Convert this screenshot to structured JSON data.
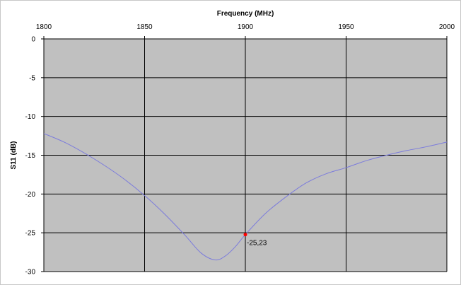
{
  "chart_data": {
    "type": "line",
    "title": "",
    "xlabel": "Frequency (MHz)",
    "ylabel": "S11 (dB)",
    "xlim": [
      1800,
      2000
    ],
    "ylim": [
      -30,
      0
    ],
    "x_ticks": [
      "1800",
      "1850",
      "1900",
      "1950",
      "2000"
    ],
    "y_ticks": [
      "0",
      "-5",
      "-10",
      "-15",
      "-20",
      "-25",
      "-30"
    ],
    "x_axis_position": "top",
    "grid": true,
    "legend": "none",
    "series": [
      {
        "x": [
          1800,
          1810,
          1820,
          1830,
          1840,
          1850,
          1860,
          1870,
          1878,
          1885,
          1890,
          1895,
          1900,
          1910,
          1920,
          1930,
          1940,
          1950,
          1960,
          1970,
          1980,
          1990,
          2000
        ],
        "y": [
          -12.2,
          -13.3,
          -14.7,
          -16.3,
          -18.1,
          -20.2,
          -22.6,
          -25.3,
          -27.6,
          -28.5,
          -28.0,
          -26.8,
          -25.23,
          -22.5,
          -20.4,
          -18.6,
          -17.4,
          -16.6,
          -15.7,
          -15.0,
          -14.4,
          -13.9,
          -13.3
        ],
        "color": "#7b7bdc"
      }
    ],
    "marker": {
      "x": 1900,
      "y": -25.23,
      "label": "-25,23",
      "color": "#ff0000"
    },
    "colors": {
      "plot_background": "#c0c0c0",
      "gridline": "#000000"
    }
  }
}
